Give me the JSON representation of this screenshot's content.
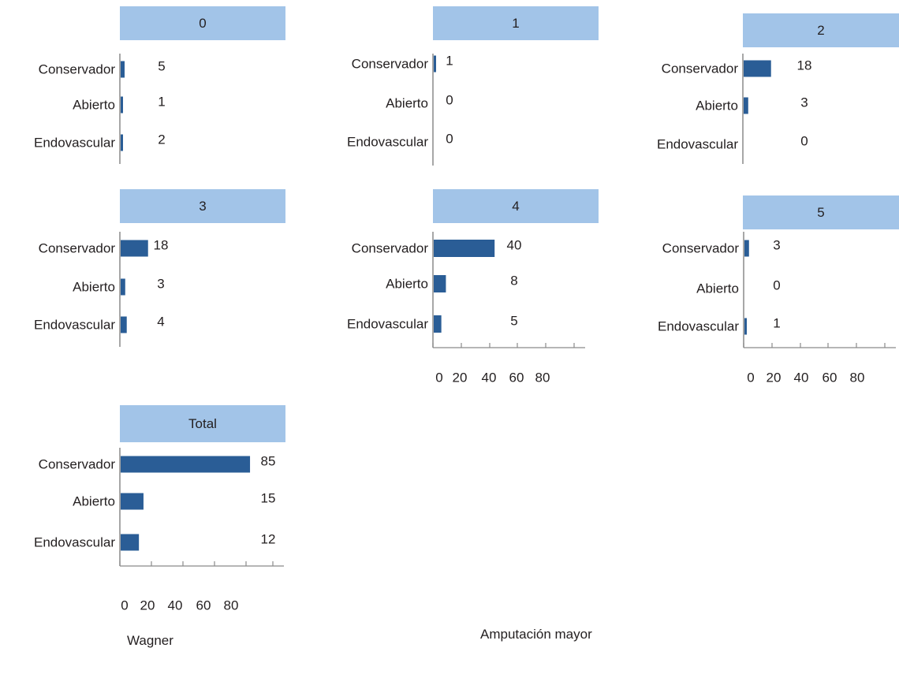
{
  "figure": {
    "facet_variable_label": "Wagner",
    "value_label": "Amputación mayor",
    "colors": {
      "header": "#a2c4e8",
      "bar": "#2a5d96",
      "axis": "#8a8a8a",
      "text": "#231f20"
    }
  },
  "chart_data": [
    {
      "type": "bar",
      "orientation": "horizontal",
      "title": "0",
      "categories": [
        "Conservador",
        "Abierto",
        "Endovascular"
      ],
      "values": [
        5,
        1,
        2
      ],
      "xlim": [
        0,
        100
      ],
      "xticks": [],
      "grid": false
    },
    {
      "type": "bar",
      "orientation": "horizontal",
      "title": "1",
      "categories": [
        "Conservador",
        "Abierto",
        "Endovascular"
      ],
      "values": [
        1,
        0,
        0
      ],
      "xlim": [
        0,
        100
      ],
      "xticks": [],
      "grid": false
    },
    {
      "type": "bar",
      "orientation": "horizontal",
      "title": "2",
      "categories": [
        "Conservador",
        "Abierto",
        "Endovascular"
      ],
      "values": [
        18,
        3,
        0
      ],
      "xlim": [
        0,
        100
      ],
      "xticks": [],
      "grid": false
    },
    {
      "type": "bar",
      "orientation": "horizontal",
      "title": "3",
      "categories": [
        "Conservador",
        "Abierto",
        "Endovascular"
      ],
      "values": [
        18,
        3,
        4
      ],
      "xlim": [
        0,
        100
      ],
      "xticks": [],
      "grid": false
    },
    {
      "type": "bar",
      "orientation": "horizontal",
      "title": "4",
      "categories": [
        "Conservador",
        "Abierto",
        "Endovascular"
      ],
      "values": [
        40,
        8,
        5
      ],
      "xlim": [
        0,
        100
      ],
      "xticks": [
        0,
        20,
        40,
        60,
        80
      ],
      "grid": false
    },
    {
      "type": "bar",
      "orientation": "horizontal",
      "title": "5",
      "categories": [
        "Conservador",
        "Abierto",
        "Endovascular"
      ],
      "values": [
        3,
        0,
        1
      ],
      "xlim": [
        0,
        100
      ],
      "xticks": [
        0,
        20,
        40,
        60,
        80
      ],
      "grid": false
    },
    {
      "type": "bar",
      "orientation": "horizontal",
      "title": "Total",
      "categories": [
        "Conservador",
        "Abierto",
        "Endovascular"
      ],
      "values": [
        85,
        15,
        12
      ],
      "xlim": [
        0,
        100
      ],
      "xticks": [
        0,
        20,
        40,
        60,
        80
      ],
      "grid": false
    }
  ]
}
